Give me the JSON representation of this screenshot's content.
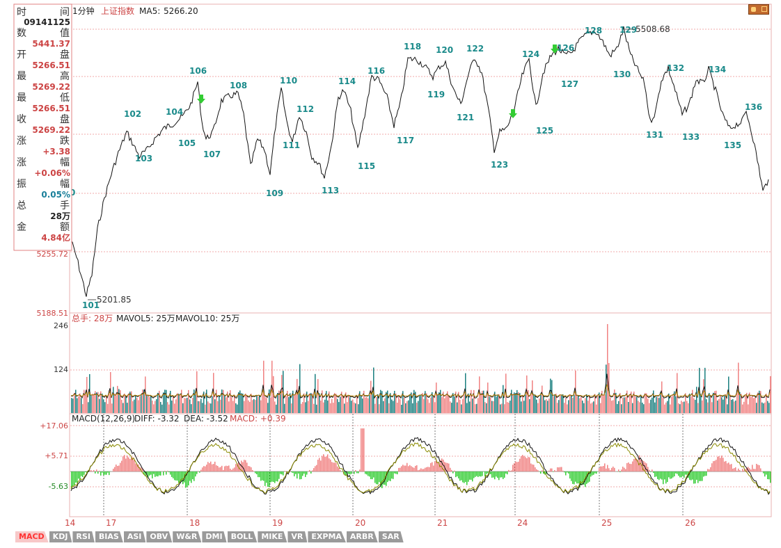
{
  "header": {
    "period": "1分钟",
    "index_name": "上证指数",
    "ma5_label": "MA5:",
    "ma5_value": "5266.20",
    "corner_icon": "window-restore-icon"
  },
  "info_panel": {
    "time_label_a": "时",
    "time_label_b": "间",
    "time_value": "09141125",
    "rows": [
      {
        "label_a": "数",
        "label_b": "值",
        "value": "5441.37"
      },
      {
        "label_a": "开",
        "label_b": "盘",
        "value": "5266.51"
      },
      {
        "label_a": "最",
        "label_b": "高",
        "value": "5269.22"
      },
      {
        "label_a": "最",
        "label_b": "低",
        "value": "5266.51"
      },
      {
        "label_a": "收",
        "label_b": "盘",
        "value": "5269.22"
      },
      {
        "label_a": "涨",
        "label_b": "跌",
        "value": "+3.38"
      },
      {
        "label_a": "涨",
        "label_b": "幅",
        "value": "+0.06%"
      },
      {
        "label_a": "振",
        "label_b": "幅",
        "value": "0.05%"
      },
      {
        "label_a": "总",
        "label_b": "手",
        "value": "28万"
      },
      {
        "label_a": "金",
        "label_b": "额",
        "value": "4.84亿"
      }
    ]
  },
  "price_pane": {
    "axis_labels": [
      "5255.72",
      "5188.51"
    ],
    "low_marker": "5201.85",
    "high_marker": "5508.68",
    "cursor_stub": "0",
    "markers": [
      "101",
      "102",
      "103",
      "104",
      "105",
      "106",
      "107",
      "108",
      "109",
      "110",
      "111",
      "112",
      "113",
      "114",
      "115",
      "116",
      "117",
      "118",
      "119",
      "120",
      "121",
      "122",
      "123",
      "124",
      "125",
      "126",
      "127",
      "128",
      "129",
      "130",
      "131",
      "132",
      "133",
      "134",
      "135",
      "136"
    ]
  },
  "volume_pane": {
    "label_total": "总手: 28万",
    "label_mavol5": "MAVOL5: 25万",
    "label_mavol10": "MAVOL10: 25万",
    "axis_labels": [
      "246",
      "124"
    ]
  },
  "macd_pane": {
    "label_params": "MACD(12,26,9)",
    "label_diff": "DIFF: -3.32",
    "label_dea": "DEA: -3.52",
    "label_macd": "MACD: +0.39",
    "axis_labels": [
      "+17.06",
      "+5.71",
      "-5.63"
    ]
  },
  "x_axis": {
    "labels": [
      "14",
      "17",
      "18",
      "19",
      "20",
      "21",
      "24",
      "25",
      "26"
    ]
  },
  "tabs": [
    "MACD",
    "KDJ",
    "RSI",
    "BIAS",
    "ASI",
    "OBV",
    "W&R",
    "DMI",
    "BOLL",
    "MIKE",
    "VR",
    "EXPMA",
    "ARBR",
    "SAR"
  ],
  "active_tab": "MACD",
  "colors": {
    "up_bar": "#f08080",
    "down_bar": "#1a7f7f",
    "macd_pos": "#f08080",
    "macd_neg": "#33cc33",
    "marker_text": "#1a8a8a",
    "arrow": "#33cc33",
    "grid": "#f0a8a8",
    "axis_text": "#cc4444"
  }
}
